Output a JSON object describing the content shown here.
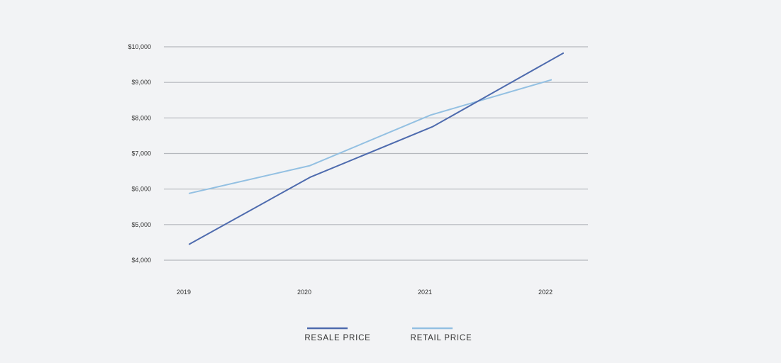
{
  "colors": {
    "background": "#f2f3f5",
    "resale": "#4e6bae",
    "retail": "#93c0e2",
    "grid": "#b5b8bd"
  },
  "chart_data": {
    "type": "line",
    "title": "",
    "xlabel": "",
    "ylabel": "",
    "x": [
      2019,
      2020,
      2021,
      2022
    ],
    "x_tick_labels": [
      "2019",
      "2020",
      "2021",
      "2022"
    ],
    "y_ticks": [
      4000,
      5000,
      6000,
      7000,
      8000,
      9000,
      10000
    ],
    "y_tick_labels": [
      "$4,000",
      "$5,000",
      "$6,000",
      "$7,000",
      "$8,000",
      "$9,000",
      "$10,000"
    ],
    "ylim": [
      4000,
      10000
    ],
    "grid": true,
    "legend_position": "bottom-center",
    "series": [
      {
        "name": "RESALE PRICE",
        "color": "#4e6bae",
        "points": [
          [
            2019,
            4450
          ],
          [
            2020,
            6330
          ],
          [
            2021.02,
            7760
          ],
          [
            2022.1,
            9820
          ]
        ]
      },
      {
        "name": "RETAIL PRICE",
        "color": "#93c0e2",
        "points": [
          [
            2019,
            5880
          ],
          [
            2020,
            6660
          ],
          [
            2021,
            8080
          ],
          [
            2022,
            9070
          ]
        ]
      }
    ]
  }
}
